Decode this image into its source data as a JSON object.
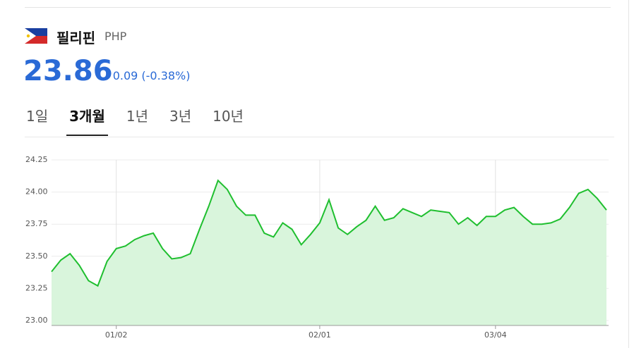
{
  "header": {
    "name": "필리핀",
    "code": "PHP",
    "price": "23.86",
    "change": "0.09 (-0.38%)"
  },
  "tabs": [
    "1일",
    "3개월",
    "1년",
    "3년",
    "10년"
  ],
  "selected_tab": 1,
  "chart_data": {
    "type": "area",
    "categories": [
      null,
      null,
      null,
      null,
      null,
      null,
      null,
      "01/02",
      null,
      null,
      null,
      null,
      null,
      null,
      null,
      null,
      null,
      null,
      null,
      null,
      null,
      null,
      null,
      null,
      null,
      null,
      null,
      null,
      null,
      "02/01",
      null,
      null,
      null,
      null,
      null,
      null,
      null,
      null,
      null,
      null,
      null,
      null,
      null,
      null,
      null,
      null,
      null,
      null,
      "03/04",
      null,
      null,
      null,
      null,
      null,
      null,
      null,
      null,
      null,
      null,
      null,
      null
    ],
    "values": [
      23.38,
      23.47,
      23.52,
      23.43,
      23.31,
      23.27,
      23.46,
      23.56,
      23.58,
      23.63,
      23.66,
      23.68,
      23.56,
      23.48,
      23.49,
      23.52,
      23.71,
      23.89,
      24.09,
      24.02,
      23.89,
      23.82,
      23.82,
      23.68,
      23.65,
      23.76,
      23.71,
      23.59,
      23.67,
      23.76,
      23.94,
      23.72,
      23.67,
      23.73,
      23.78,
      23.89,
      23.78,
      23.8,
      23.87,
      23.84,
      23.81,
      23.86,
      23.85,
      23.84,
      23.75,
      23.8,
      23.74,
      23.81,
      23.81,
      23.86,
      23.88,
      23.81,
      23.75,
      23.75,
      23.76,
      23.79,
      23.88,
      23.99,
      24.02,
      23.95,
      23.86
    ],
    "color": "#1fbf2f",
    "fill": "#d9f5dc",
    "ylim": [
      23,
      24.25
    ],
    "yticks": [
      {
        "value": 23,
        "label": "23.00"
      },
      {
        "value": 23.25,
        "label": "23.25"
      },
      {
        "value": 23.5,
        "label": "23.50"
      },
      {
        "value": 23.75,
        "label": "23.75"
      },
      {
        "value": 24,
        "label": "24.00"
      },
      {
        "value": 24.25,
        "label": "24.25"
      }
    ],
    "grid": true
  }
}
